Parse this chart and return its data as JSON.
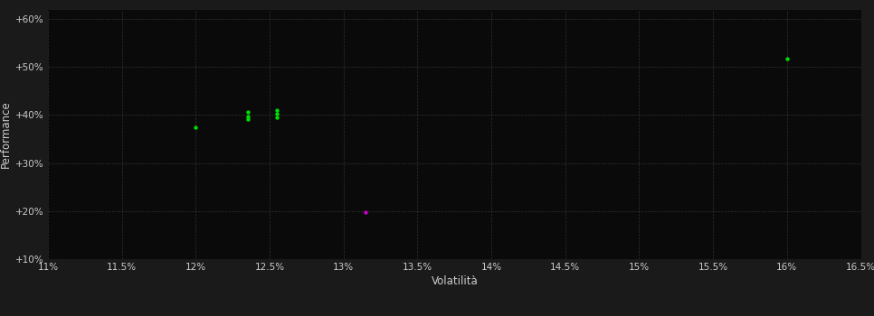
{
  "background_color": "#1a1a1a",
  "plot_bg_color": "#0a0a0a",
  "grid_color": "#3a3a3a",
  "text_color": "#cccccc",
  "xlabel": "Volatilità",
  "ylabel": "Performance",
  "xlim": [
    0.11,
    0.165
  ],
  "ylim": [
    0.1,
    0.62
  ],
  "xticks": [
    0.11,
    0.115,
    0.12,
    0.125,
    0.13,
    0.135,
    0.14,
    0.145,
    0.15,
    0.155,
    0.16,
    0.165
  ],
  "yticks": [
    0.1,
    0.2,
    0.3,
    0.4,
    0.5,
    0.6
  ],
  "green_points": [
    [
      0.12,
      0.374
    ],
    [
      0.1235,
      0.407
    ],
    [
      0.1235,
      0.398
    ],
    [
      0.1235,
      0.392
    ],
    [
      0.1255,
      0.41
    ],
    [
      0.1255,
      0.402
    ],
    [
      0.1255,
      0.396
    ],
    [
      0.16,
      0.518
    ]
  ],
  "magenta_points": [
    [
      0.1315,
      0.197
    ]
  ],
  "point_size": 10,
  "green_color": "#00dd00",
  "magenta_color": "#cc00cc",
  "font_size_ticks": 7.5,
  "font_size_label": 8.5
}
